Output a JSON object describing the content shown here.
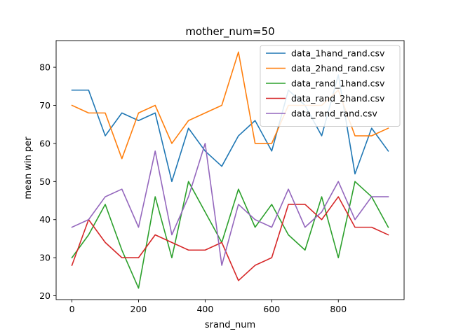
{
  "chart_data": {
    "type": "line",
    "title": "mother_num=50",
    "xlabel": "srand_num",
    "ylabel": "mean win per",
    "xlim": [
      -47.5,
      997.5
    ],
    "ylim": [
      19,
      87
    ],
    "xticks": [
      0,
      200,
      400,
      600,
      800
    ],
    "yticks": [
      20,
      30,
      40,
      50,
      60,
      70,
      80
    ],
    "grid": false,
    "legend_position": "top-right",
    "x": [
      0,
      50,
      100,
      150,
      200,
      250,
      300,
      350,
      400,
      450,
      500,
      550,
      600,
      650,
      700,
      750,
      800,
      850,
      900,
      950
    ],
    "series": [
      {
        "name": "data_1hand_rand.csv",
        "color": "#1f77b4",
        "values": [
          74,
          74,
          62,
          68,
          66,
          68,
          50,
          64,
          58,
          54,
          62,
          66,
          58,
          74,
          70,
          62,
          78,
          52,
          64,
          58
        ]
      },
      {
        "name": "data_2hand_rand.csv",
        "color": "#ff7f0e",
        "values": [
          70,
          68,
          68,
          56,
          68,
          70,
          60,
          66,
          68,
          70,
          84,
          60,
          60,
          70,
          70,
          70,
          74,
          62,
          62,
          64
        ]
      },
      {
        "name": "data_rand_1hand.csv",
        "color": "#2ca02c",
        "values": [
          30,
          36,
          44,
          32,
          22,
          46,
          30,
          50,
          42,
          34,
          48,
          38,
          44,
          36,
          32,
          46,
          30,
          50,
          46,
          38
        ]
      },
      {
        "name": "data_rand_2hand.csv",
        "color": "#d62728",
        "values": [
          28,
          40,
          34,
          30,
          30,
          36,
          34,
          32,
          32,
          34,
          24,
          28,
          30,
          44,
          44,
          40,
          46,
          38,
          38,
          36
        ]
      },
      {
        "name": "data_rand_rand.csv",
        "color": "#9467bd",
        "values": [
          38,
          40,
          46,
          48,
          38,
          58,
          36,
          46,
          60,
          28,
          44,
          40,
          38,
          48,
          38,
          42,
          50,
          40,
          46,
          46
        ]
      }
    ]
  }
}
